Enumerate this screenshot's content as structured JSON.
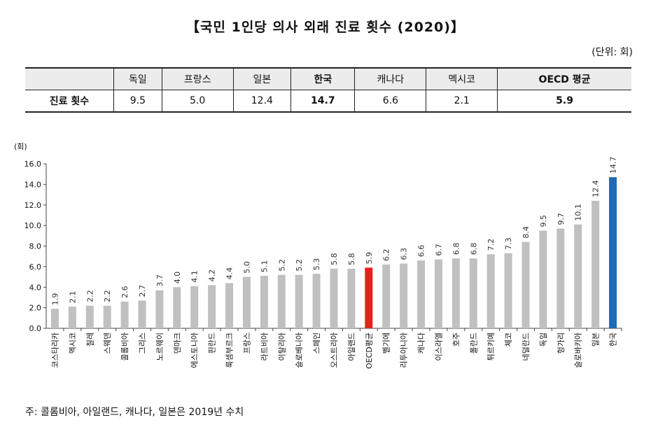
{
  "title": "【국민 1인당 의사 외래 진료 횟수 (2020)】",
  "unit_note": "(단위: 회)",
  "summary_table": {
    "headers": [
      "",
      "독일",
      "프랑스",
      "일본",
      "한국",
      "캐나다",
      "멕시코",
      "OECD 평균"
    ],
    "row_label": "진료 횟수",
    "values": [
      "9.5",
      "5.0",
      "12.4",
      "14.7",
      "6.6",
      "2.1",
      "5.9"
    ]
  },
  "footnote": "주: 콜롬비아, 아일랜드, 캐나다, 일본은 2019년 수치",
  "colors": {
    "bar": "#c0c0c0",
    "oecd": "#e8201c",
    "korea": "#1f6bb5"
  },
  "chart_data": {
    "type": "bar",
    "ylabel": "(회)",
    "ylim": [
      0,
      16
    ],
    "yticks": [
      "0.0",
      "2.0",
      "4.0",
      "6.0",
      "8.0",
      "10.0",
      "12.0",
      "14.0",
      "16.0"
    ],
    "categories": [
      "코스타리카",
      "멕시코",
      "칠레",
      "스웨덴",
      "콜롬비아",
      "그리스",
      "노르웨이",
      "덴마크",
      "에스토니아",
      "핀란드",
      "룩셈부르크",
      "프랑스",
      "라트비아",
      "이탈리아",
      "슬로베니아",
      "스페인",
      "오스트리아",
      "아일랜드",
      "OECD평균",
      "벨기에",
      "리투아니아",
      "캐나다",
      "이스라엘",
      "호주",
      "폴란드",
      "튀르키예",
      "체코",
      "네덜란드",
      "독일",
      "헝가리",
      "슬로바키아",
      "일본",
      "한국"
    ],
    "values": [
      1.9,
      2.1,
      2.2,
      2.2,
      2.6,
      2.7,
      3.7,
      4.0,
      4.1,
      4.2,
      4.4,
      5.0,
      5.1,
      5.2,
      5.2,
      5.3,
      5.8,
      5.8,
      5.9,
      6.2,
      6.3,
      6.6,
      6.7,
      6.8,
      6.8,
      7.2,
      7.3,
      8.4,
      9.5,
      9.7,
      10.1,
      12.4,
      14.7
    ],
    "value_labels": [
      "1.9",
      "2.1",
      "2.2",
      "2.2",
      "2.6",
      "2.7",
      "3.7",
      "4.0",
      "4.1",
      "4.2",
      "4.4",
      "5.0",
      "5.1",
      "5.2",
      "5.2",
      "5.3",
      "5.8",
      "5.8",
      "5.9",
      "6.2",
      "6.3",
      "6.6",
      "6.7",
      "6.8",
      "6.8",
      "7.2",
      "7.3",
      "8.4",
      "9.5",
      "9.7",
      "10.1",
      "12.4",
      "14.7"
    ],
    "highlight": {
      "OECD평균": "oecd",
      "한국": "korea"
    },
    "grid": false,
    "legend": "none"
  }
}
